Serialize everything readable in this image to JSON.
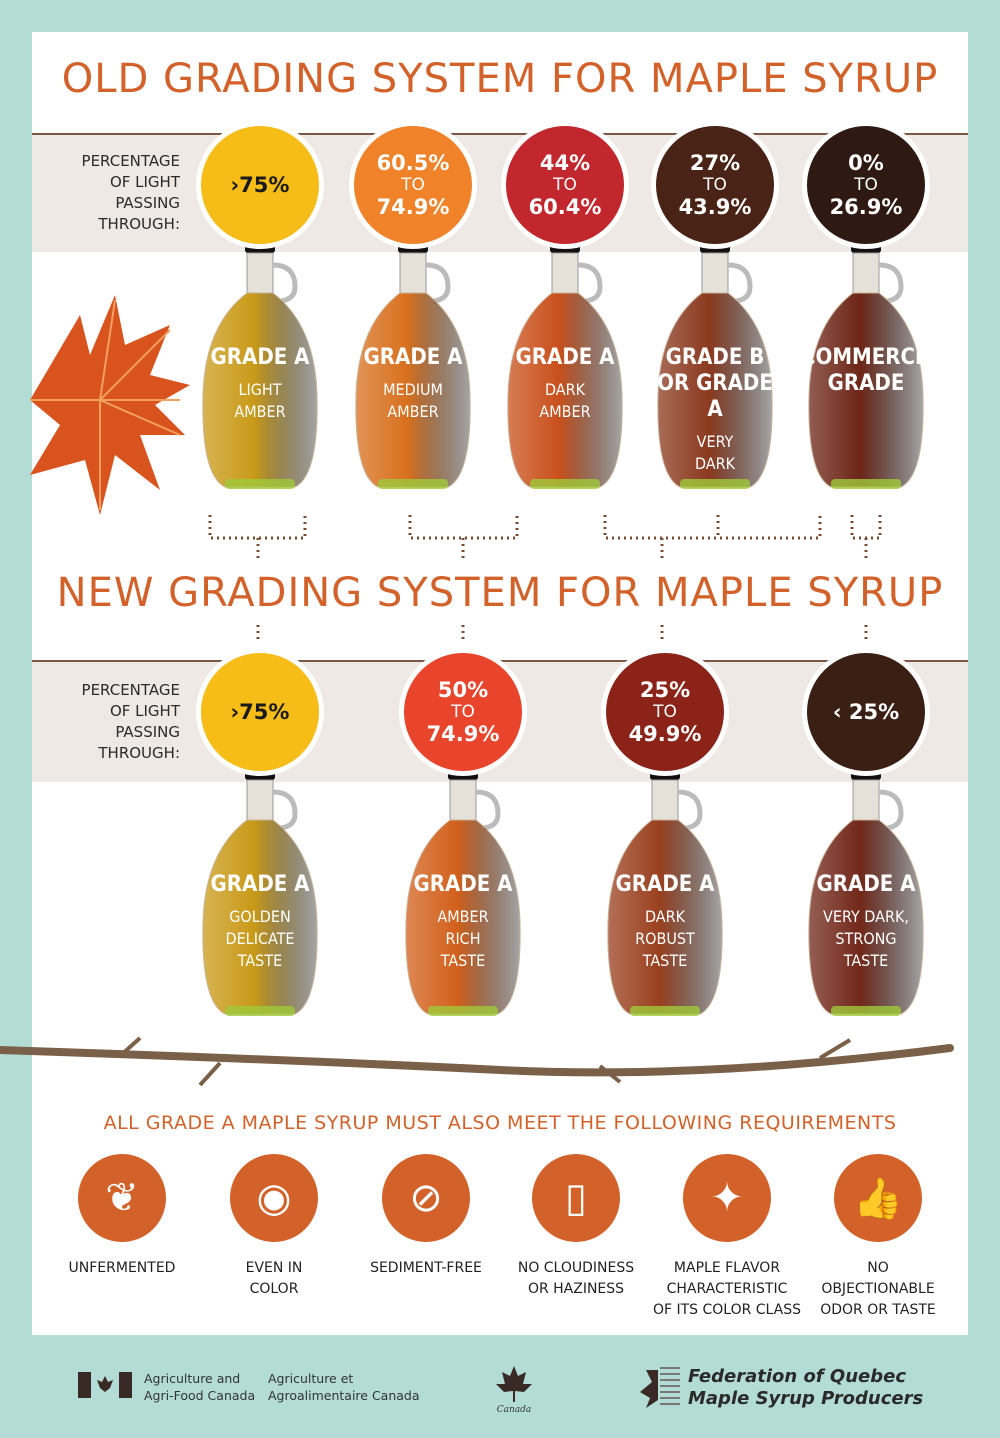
{
  "old_system": {
    "title": "OLD GRADING SYSTEM FOR MAPLE SYRUP",
    "light_label": [
      "PERCENTAGE",
      "OF LIGHT",
      "PASSING",
      "THROUGH:"
    ],
    "grades": [
      {
        "range_top": "›75%",
        "range_to": "",
        "range_bottom": "",
        "circle_color": "#f6bd19",
        "text_color": "#1a1a1a",
        "liquid": "#c99a18",
        "grade": [
          "GRADE A"
        ],
        "sub": [
          "LIGHT",
          "AMBER"
        ]
      },
      {
        "range_top": "60.5%",
        "range_to": "TO",
        "range_bottom": "74.9%",
        "circle_color": "#f0822a",
        "text_color": "#ffffff",
        "liquid": "#d8701e",
        "grade": [
          "GRADE A"
        ],
        "sub": [
          "MEDIUM",
          "AMBER"
        ]
      },
      {
        "range_top": "44%",
        "range_to": "TO",
        "range_bottom": "60.4%",
        "circle_color": "#c1272d",
        "text_color": "#ffffff",
        "liquid": "#c9501b",
        "grade": [
          "GRADE A"
        ],
        "sub": [
          "DARK",
          "AMBER"
        ]
      },
      {
        "range_top": "27%",
        "range_to": "TO",
        "range_bottom": "43.9%",
        "circle_color": "#4a2317",
        "text_color": "#ffffff",
        "liquid": "#8b3a1f",
        "grade": [
          "GRADE B",
          "OR GRADE A"
        ],
        "sub": [
          "VERY",
          "DARK"
        ]
      },
      {
        "range_top": "0%",
        "range_to": "TO",
        "range_bottom": "26.9%",
        "circle_color": "#2e1a12",
        "text_color": "#ffffff",
        "liquid": "#6d2617",
        "grade": [
          "COMMERCIAL",
          "GRADE"
        ],
        "sub": []
      }
    ]
  },
  "new_system": {
    "title": "NEW GRADING SYSTEM FOR MAPLE SYRUP",
    "light_label": [
      "PERCENTAGE",
      "OF LIGHT",
      "PASSING",
      "THROUGH:"
    ],
    "grades": [
      {
        "range_top": "›75%",
        "range_to": "",
        "range_bottom": "",
        "circle_color": "#f6bd19",
        "text_color": "#1a1a1a",
        "liquid": "#c99a18",
        "grade": [
          "GRADE A"
        ],
        "sub": [
          "GOLDEN",
          "DELICATE",
          "TASTE"
        ]
      },
      {
        "range_top": "50%",
        "range_to": "TO",
        "range_bottom": "74.9%",
        "circle_color": "#e8452c",
        "text_color": "#ffffff",
        "liquid": "#d2601b",
        "grade": [
          "GRADE A"
        ],
        "sub": [
          "AMBER",
          "RICH",
          "TASTE"
        ]
      },
      {
        "range_top": "25%",
        "range_to": "TO",
        "range_bottom": "49.9%",
        "circle_color": "#8b2318",
        "text_color": "#ffffff",
        "liquid": "#9a401f",
        "grade": [
          "GRADE A"
        ],
        "sub": [
          "DARK",
          "ROBUST",
          "TASTE"
        ]
      },
      {
        "range_top": "‹ 25%",
        "range_to": "",
        "range_bottom": "",
        "circle_color": "#3a1f15",
        "text_color": "#ffffff",
        "liquid": "#72281a",
        "grade": [
          "GRADE A"
        ],
        "sub": [
          "VERY DARK,",
          "STRONG",
          "TASTE"
        ]
      }
    ]
  },
  "requirements": {
    "title": "ALL GRADE A MAPLE SYRUP MUST ALSO MEET THE FOLLOWING REQUIREMENTS",
    "items": [
      {
        "icon": "maple-leaf-drop-icon",
        "glyph": "❦",
        "label": [
          "UNFERMENTED"
        ]
      },
      {
        "icon": "eye-drop-icon",
        "glyph": "◉",
        "label": [
          "EVEN IN",
          "COLOR"
        ]
      },
      {
        "icon": "no-sediment-icon",
        "glyph": "⊘",
        "label": [
          "SEDIMENT-FREE"
        ]
      },
      {
        "icon": "clear-glass-icon",
        "glyph": "▯",
        "label": [
          "NO CLOUDINESS",
          "OR HAZINESS"
        ]
      },
      {
        "icon": "maple-leaf-fork-icon",
        "glyph": "✦",
        "label": [
          "MAPLE FLAVOR",
          "CHARACTERISTIC",
          "OF ITS COLOR CLASS"
        ]
      },
      {
        "icon": "thumbs-up-icon",
        "glyph": "👍",
        "label": [
          "NO",
          "OBJECTIONABLE",
          "ODOR OR TASTE"
        ]
      }
    ]
  },
  "footer": {
    "aafc_en": [
      "Agriculture and",
      "Agri-Food Canada"
    ],
    "aafc_fr": [
      "Agriculture et",
      "Agroalimentaire Canada"
    ],
    "canada_wordmark": "Canada",
    "federation": [
      "Federation of Quebec",
      "Maple Syrup Producers"
    ]
  },
  "colors": {
    "accent": "#d2622a",
    "background": "#b3dcd6",
    "band": "#efe9e5"
  }
}
